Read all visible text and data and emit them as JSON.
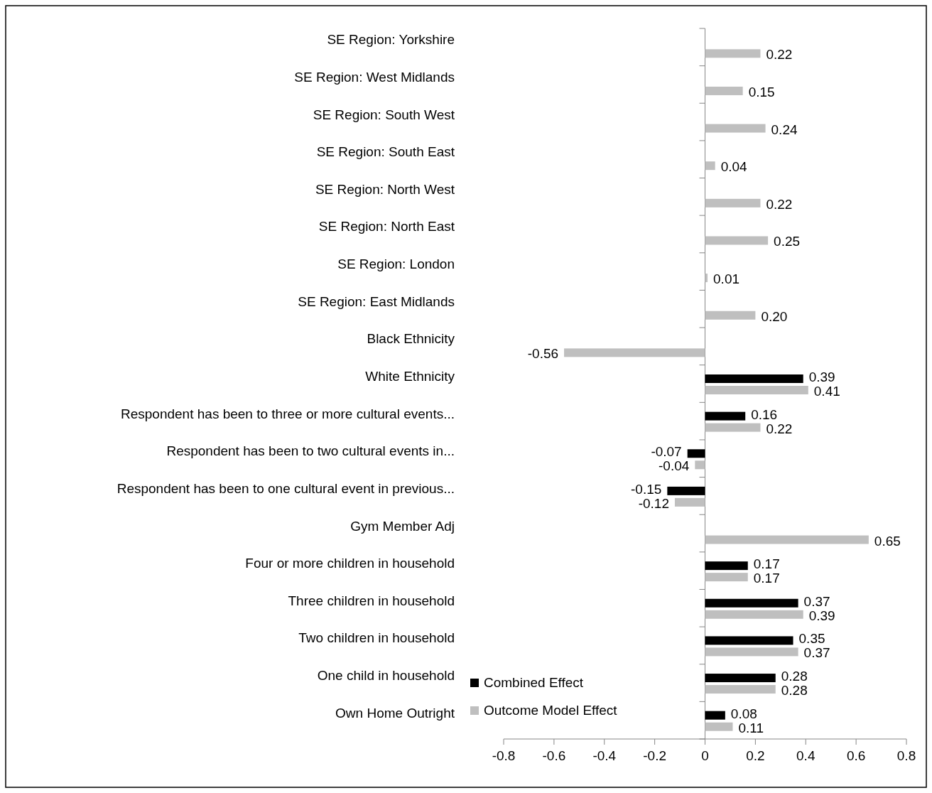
{
  "chart_data": {
    "type": "bar",
    "orientation": "horizontal",
    "categories": [
      "SE Region: Yorkshire",
      "SE Region: West Midlands",
      "SE Region: South West",
      "SE Region: South East",
      "SE Region: North West",
      "SE Region: North East",
      "SE Region: London",
      "SE Region: East Midlands",
      "Black Ethnicity",
      "White Ethnicity",
      "Respondent has been to three or more cultural events...",
      "Respondent has been to two cultural events in...",
      "Respondent has been to one cultural event in previous...",
      "Gym Member Adj",
      "Four or more children in household",
      "Three children in household",
      "Two children in household",
      "One child in household",
      "Own Home Outright"
    ],
    "series": [
      {
        "name": "Combined Effect",
        "color": "#000000",
        "values": [
          null,
          null,
          null,
          null,
          null,
          null,
          null,
          null,
          null,
          0.39,
          0.16,
          -0.07,
          -0.15,
          null,
          0.17,
          0.37,
          0.35,
          0.28,
          0.08
        ],
        "value_labels": [
          null,
          null,
          null,
          null,
          null,
          null,
          null,
          null,
          null,
          "0.39",
          "0.16",
          "-0.07",
          "-0.15",
          null,
          "0.17",
          "0.37",
          "0.35",
          "0.28",
          "0.08"
        ]
      },
      {
        "name": "Outcome Model Effect",
        "color": "#bfbfbf",
        "values": [
          0.22,
          0.15,
          0.24,
          0.04,
          0.22,
          0.25,
          0.01,
          0.2,
          -0.56,
          0.41,
          0.22,
          -0.04,
          -0.12,
          0.65,
          0.17,
          0.39,
          0.37,
          0.28,
          0.11
        ],
        "value_labels": [
          "0.22",
          "0.15",
          "0.24",
          "0.04",
          "0.22",
          "0.25",
          "0.01",
          "0.20",
          "-0.56",
          "0.41",
          "0.22",
          "-0.04",
          "-0.12",
          "0.65",
          "0.17",
          "0.39",
          "0.37",
          "0.28",
          "0.11"
        ]
      }
    ],
    "xlim": [
      -0.8,
      0.8
    ],
    "xticks": [
      -0.8,
      -0.6,
      -0.4,
      -0.2,
      0,
      0.2,
      0.4,
      0.6,
      0.8
    ],
    "legend": "bottom left"
  }
}
